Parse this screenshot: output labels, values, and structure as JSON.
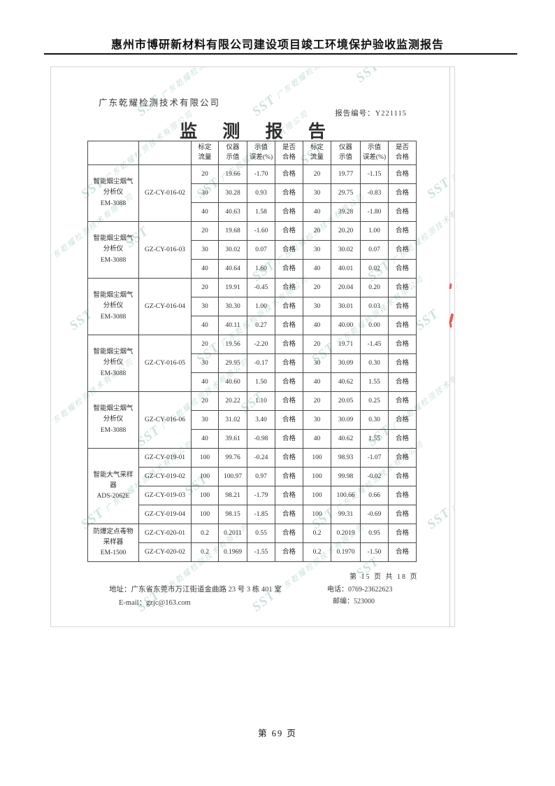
{
  "page": {
    "header_title": "惠州市博研新材料有限公司建设项目竣工环境保护验收监测报告",
    "page_number": "第 69 页"
  },
  "report": {
    "company_name": "广东乾耀检测技术有限公司",
    "report_no_label": "报告编号：",
    "report_no": "Y221115",
    "title": "监 测 报 告",
    "watermark": {
      "logo": "SST",
      "text": "广东乾耀检测技术有限公司",
      "color": "#7fb2a9"
    },
    "table": {
      "col_headers": [
        "",
        "",
        "标定\n流量",
        "仪器\n示值",
        "示值\n误差(%)",
        "是否\n合格",
        "标定\n流量",
        "仪器\n示值",
        "示值\n误差(%)",
        "是否\n合格"
      ],
      "groups": [
        {
          "instrument": "智能烟尘烟气\n分析仪\nEM-3088",
          "device_id": "GZ-CY-016-02",
          "rows": [
            {
              "values": [
                "20",
                "19.66",
                "-1.70",
                "合格",
                "20",
                "19.77",
                "-1.15",
                "合格"
              ]
            },
            {
              "values": [
                "30",
                "30.28",
                "0.93",
                "合格",
                "30",
                "29.75",
                "-0.83",
                "合格"
              ]
            },
            {
              "values": [
                "40",
                "40.63",
                "1.58",
                "合格",
                "40",
                "39.28",
                "-1.80",
                "合格"
              ]
            }
          ]
        },
        {
          "instrument": "智能烟尘烟气\n分析仪\nEM-3088",
          "device_id": "GZ-CY-016-03",
          "rows": [
            {
              "values": [
                "20",
                "19.68",
                "-1.60",
                "合格",
                "20",
                "20.20",
                "1.00",
                "合格"
              ]
            },
            {
              "values": [
                "30",
                "30.02",
                "0.07",
                "合格",
                "30",
                "30.02",
                "0.07",
                "合格"
              ]
            },
            {
              "values": [
                "40",
                "40.64",
                "1.60",
                "合格",
                "40",
                "40.01",
                "0.02",
                "合格"
              ]
            }
          ]
        },
        {
          "instrument": "智能烟尘烟气\n分析仪\nEM-3088",
          "device_id": "GZ-CY-016-04",
          "rows": [
            {
              "values": [
                "20",
                "19.91",
                "-0.45",
                "合格",
                "20",
                "20.04",
                "0.20",
                "合格"
              ]
            },
            {
              "values": [
                "30",
                "30.30",
                "1.00",
                "合格",
                "30",
                "30.01",
                "0.03",
                "合格"
              ]
            },
            {
              "values": [
                "40",
                "40.11",
                "0.27",
                "合格",
                "40",
                "40.00",
                "0.00",
                "合格"
              ]
            }
          ]
        },
        {
          "instrument": "智能烟尘烟气\n分析仪\nEM-3088",
          "device_id": "GZ-CY-016-05",
          "rows": [
            {
              "values": [
                "20",
                "19.56",
                "-2.20",
                "合格",
                "20",
                "19.71",
                "-1.45",
                "合格"
              ]
            },
            {
              "values": [
                "30",
                "29.95",
                "-0.17",
                "合格",
                "30",
                "30.09",
                "0.30",
                "合格"
              ]
            },
            {
              "values": [
                "40",
                "40.60",
                "1.50",
                "合格",
                "40",
                "40.62",
                "1.55",
                "合格"
              ]
            }
          ]
        },
        {
          "instrument": "智能烟尘烟气\n分析仪\nEM-3088",
          "device_id": "GZ-CY-016-06",
          "rows": [
            {
              "values": [
                "20",
                "20.22",
                "1.10",
                "合格",
                "20",
                "20.05",
                "0.25",
                "合格"
              ]
            },
            {
              "values": [
                "30",
                "31.02",
                "3.40",
                "合格",
                "30",
                "30.09",
                "0.30",
                "合格"
              ]
            },
            {
              "values": [
                "40",
                "39.61",
                "-0.98",
                "合格",
                "40",
                "40.62",
                "1.55",
                "合格"
              ]
            }
          ]
        },
        {
          "instrument": "智能大气采样\n器\nADS-2062E",
          "device_id": null,
          "rows": [
            {
              "id": "GZ-CY-019-01",
              "values": [
                "100",
                "99.76",
                "-0.24",
                "合格",
                "100",
                "98.93",
                "-1.07",
                "合格"
              ]
            },
            {
              "id": "GZ-CY-019-02",
              "values": [
                "100",
                "100.97",
                "0.97",
                "合格",
                "100",
                "99.98",
                "-0.02",
                "合格"
              ]
            },
            {
              "id": "GZ-CY-019-03",
              "values": [
                "100",
                "98.21",
                "-1.79",
                "合格",
                "100",
                "100.66",
                "0.66",
                "合格"
              ]
            },
            {
              "id": "GZ-CY-019-04",
              "values": [
                "100",
                "98.15",
                "-1.85",
                "合格",
                "100",
                "99.31",
                "-0.69",
                "合格"
              ]
            }
          ]
        },
        {
          "instrument": "防爆定点毒物\n采样器\nEM-1500",
          "device_id": null,
          "rows": [
            {
              "id": "GZ-CY-020-01",
              "values": [
                "0.2",
                "0.2011",
                "0.55",
                "合格",
                "0.2",
                "0.2019",
                "0.95",
                "合格"
              ]
            },
            {
              "id": "GZ-CY-020-02",
              "values": [
                "0.2",
                "0.1969",
                "-1.55",
                "合格",
                "0.2",
                "0.1970",
                "-1.50",
                "合格"
              ]
            }
          ]
        }
      ]
    },
    "footer": {
      "page_info": "第 15 页 共 18 页",
      "address": "地址：广东省东莞市万江街道金曲路 23 号 3 栋 401 室",
      "email": "E-mail：gzjc@163.com",
      "phone": "电话：0769-23622623",
      "postal": "邮编：523000"
    }
  }
}
